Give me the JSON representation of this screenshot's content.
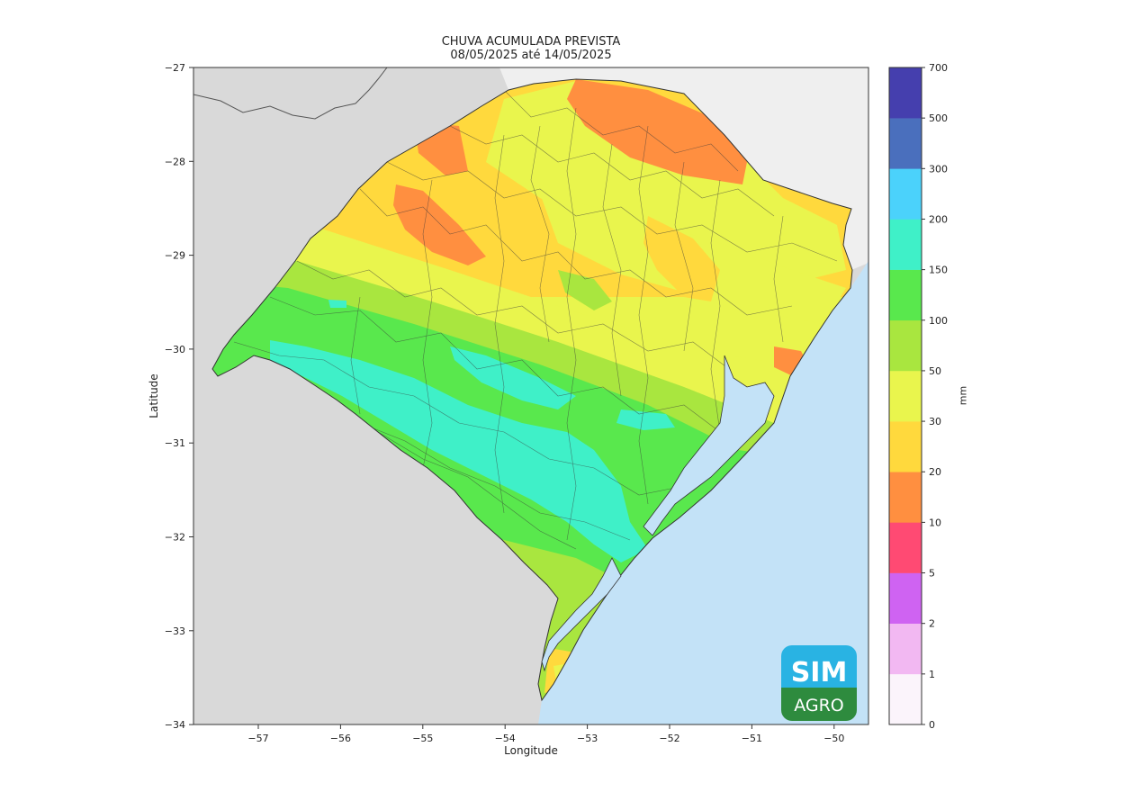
{
  "title": {
    "line1": "CHUVA ACUMULADA PREVISTA",
    "line2": "08/05/2025 até 14/05/2025"
  },
  "axes": {
    "xlabel": "Longitude",
    "ylabel": "Latitude",
    "xticks": [
      "−57",
      "−56",
      "−55",
      "−54",
      "−53",
      "−52",
      "−51",
      "−50"
    ],
    "yticks": [
      "−27",
      "−28",
      "−29",
      "−30",
      "−31",
      "−32",
      "−33",
      "−34"
    ]
  },
  "colorbar": {
    "unit_label": "mm",
    "tick_labels": [
      "0",
      "1",
      "2",
      "5",
      "10",
      "20",
      "30",
      "50",
      "100",
      "150",
      "200",
      "300",
      "500",
      "700"
    ],
    "colors": [
      "#fbf4fb",
      "#f2b8f2",
      "#cf63f2",
      "#ff4a73",
      "#ff8f40",
      "#ffd93d",
      "#e9f54d",
      "#a9e63f",
      "#59e84d",
      "#3ff0c8",
      "#4bd2fb",
      "#4a6fbd",
      "#453fae"
    ]
  },
  "map_colors": {
    "land_outside": "#d9d9d9",
    "land_north": "#efefef",
    "ocean": "#c3e2f7"
  },
  "logo": {
    "line1": "SIM",
    "line2": "AGRO",
    "top_color": "#29b3e3",
    "bottom_color": "#2e8b3e"
  }
}
